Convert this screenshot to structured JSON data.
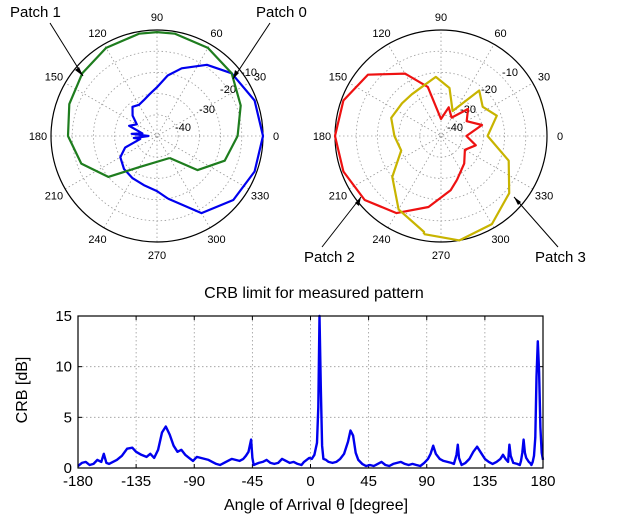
{
  "chart_data": [
    {
      "type": "line",
      "title": "",
      "projection": "polar",
      "angle_ticks": [
        "0",
        "30",
        "60",
        "90",
        "120",
        "150",
        "180",
        "210",
        "240",
        "270",
        "300",
        "330"
      ],
      "radial_ticks": [
        "-10",
        "-20",
        "-30",
        "-40"
      ],
      "rlim": [
        -50,
        0
      ],
      "grid": true,
      "series": [
        {
          "name": "Patch 0",
          "color": "#0000ee",
          "theta_deg": [
            -80,
            -60,
            -40,
            -20,
            0,
            20,
            40,
            55,
            70,
            80,
            90,
            100,
            110,
            120,
            130,
            140,
            150,
            160,
            170,
            175,
            180,
            185,
            190,
            200,
            210,
            225,
            240,
            255,
            270,
            280
          ],
          "gain_db": [
            -20,
            -8,
            -3,
            -1,
            0,
            -1,
            -4,
            -9,
            -16,
            -21,
            -27,
            -30,
            -32,
            -33,
            -32,
            -35,
            -39,
            -36,
            -43,
            -38,
            -46,
            -39,
            -42,
            -34,
            -30,
            -28,
            -27,
            -26,
            -24,
            -20
          ]
        },
        {
          "name": "Patch 1",
          "color": "#1e7d1e",
          "theta_deg": [
            -60,
            -40,
            -20,
            0,
            20,
            40,
            60,
            80,
            90,
            100,
            120,
            140,
            160,
            180,
            200,
            220,
            240
          ],
          "gain_db": [
            -38,
            -25,
            -16,
            -12,
            -8,
            -4,
            -2,
            -1,
            -1,
            -1,
            -2,
            -4,
            -6,
            -8,
            -12,
            -20,
            -33
          ]
        }
      ]
    },
    {
      "type": "line",
      "title": "",
      "projection": "polar",
      "angle_ticks": [
        "0",
        "30",
        "60",
        "90",
        "120",
        "150",
        "180",
        "210",
        "240",
        "270",
        "300",
        "330"
      ],
      "radial_ticks": [
        "-10",
        "-20",
        "-30",
        "-40"
      ],
      "rlim": [
        -50,
        0
      ],
      "grid": true,
      "series": [
        {
          "name": "Patch 2",
          "color": "#ee1111",
          "theta_deg": [
            -70,
            -50,
            -30,
            -15,
            0,
            15,
            30,
            45,
            60,
            75,
            90,
            105,
            120,
            140,
            160,
            180,
            200,
            220,
            240,
            260,
            280
          ],
          "gain_db": [
            -28,
            -33,
            -37,
            -33,
            -38,
            -30,
            -36,
            -32,
            -40,
            -36,
            -42,
            -26,
            -16,
            -5,
            -1,
            0,
            -1,
            -3,
            -8,
            -16,
            -24
          ]
        },
        {
          "name": "Patch 3",
          "color": "#c8b400",
          "theta_deg": [
            -100,
            -80,
            -60,
            -40,
            -20,
            0,
            20,
            35,
            50,
            65,
            80,
            95,
            110,
            125,
            140,
            160,
            180,
            200,
            220,
            240,
            260
          ],
          "gain_db": [
            -3,
            0,
            -2,
            -8,
            -16,
            -28,
            -22,
            -26,
            -22,
            -37,
            -27,
            -22,
            -25,
            -26,
            -26,
            -25,
            -28,
            -30,
            -20,
            -10,
            -4
          ]
        }
      ]
    },
    {
      "type": "line",
      "title": "CRB limit for measured pattern",
      "xlabel": "Angle of Arrival θ [degree]",
      "ylabel": "CRB [dB]",
      "xlim": [
        -180,
        180
      ],
      "ylim": [
        0,
        15
      ],
      "xticks": [
        "-180",
        "-135",
        "-90",
        "-45",
        "0",
        "45",
        "90",
        "135",
        "180"
      ],
      "yticks": [
        "0",
        "5",
        "10",
        "15"
      ],
      "grid": true,
      "series": [
        {
          "name": "",
          "color": "#0000ee",
          "x": [
            -180,
            -177,
            -174,
            -171,
            -168,
            -165,
            -162,
            -160,
            -158,
            -156,
            -153,
            -150,
            -146,
            -142,
            -138,
            -135,
            -131,
            -127,
            -124,
            -121,
            -118,
            -115,
            -112,
            -109,
            -106,
            -103,
            -100,
            -97,
            -94,
            -91,
            -88,
            -85,
            -82,
            -79,
            -76,
            -73,
            -70,
            -67,
            -64,
            -61,
            -58,
            -55,
            -52,
            -50,
            -48,
            -46,
            -45,
            -44,
            -42,
            -40,
            -37,
            -34,
            -31,
            -28,
            -25,
            -22,
            -19,
            -16,
            -13,
            -10,
            -7,
            -5,
            -3,
            -1,
            1,
            3,
            5,
            6,
            7,
            8,
            9,
            10,
            12,
            14,
            17,
            20,
            23,
            26,
            29,
            31,
            33,
            35,
            37,
            40,
            43,
            46,
            49,
            52,
            55,
            58,
            61,
            64,
            67,
            70,
            73,
            76,
            79,
            82,
            85,
            88,
            91,
            93,
            95,
            97,
            100,
            103,
            106,
            109,
            111,
            113,
            114,
            115,
            117,
            120,
            123,
            126,
            129,
            132,
            135,
            138,
            141,
            144,
            147,
            149,
            151,
            153,
            154,
            155,
            157,
            160,
            162,
            163,
            164,
            165,
            166,
            167,
            168,
            169,
            170,
            171,
            172,
            173,
            174,
            175,
            176,
            177,
            178,
            179,
            180
          ],
          "y": [
            0.2,
            0.5,
            0.6,
            0.3,
            0.4,
            0.8,
            0.6,
            1.4,
            0.5,
            0.4,
            0.6,
            0.8,
            1.2,
            1.9,
            2.0,
            1.6,
            1.3,
            1.1,
            1.4,
            1.0,
            1.8,
            3.5,
            4.1,
            3.3,
            2.2,
            1.6,
            1.8,
            1.3,
            1.0,
            0.7,
            1.1,
            1.0,
            0.9,
            0.8,
            0.6,
            0.4,
            0.3,
            0.5,
            0.7,
            0.9,
            0.8,
            0.7,
            0.9,
            1.2,
            1.6,
            2.8,
            1.0,
            0.3,
            0.4,
            0.5,
            0.6,
            0.8,
            0.5,
            0.4,
            0.5,
            0.9,
            0.7,
            0.5,
            0.6,
            0.4,
            0.3,
            0.6,
            0.8,
            1.0,
            0.9,
            1.3,
            2.5,
            6.0,
            15.0,
            8.0,
            2.2,
            0.9,
            0.8,
            0.6,
            0.5,
            0.6,
            0.9,
            1.4,
            2.6,
            3.7,
            3.2,
            1.5,
            0.8,
            0.4,
            0.2,
            0.3,
            0.2,
            0.4,
            0.6,
            0.3,
            0.2,
            0.4,
            0.5,
            0.6,
            0.4,
            0.3,
            0.4,
            0.3,
            0.2,
            0.5,
            0.9,
            1.4,
            2.2,
            1.4,
            0.9,
            0.7,
            0.6,
            0.5,
            0.4,
            1.3,
            2.3,
            1.0,
            0.3,
            0.5,
            0.9,
            1.6,
            2.1,
            1.5,
            0.9,
            0.6,
            0.4,
            0.6,
            0.9,
            1.3,
            0.9,
            0.6,
            2.3,
            1.2,
            0.5,
            0.4,
            0.3,
            0.7,
            1.5,
            2.8,
            1.5,
            1.0,
            0.8,
            0.6,
            0.5,
            0.3,
            0.6,
            1.2,
            3.0,
            9.0,
            12.5,
            9.5,
            4.0,
            1.5,
            0.8
          ]
        }
      ]
    }
  ],
  "annotations": {
    "patch0": "Patch 0",
    "patch1": "Patch 1",
    "patch2": "Patch 2",
    "patch3": "Patch 3"
  }
}
